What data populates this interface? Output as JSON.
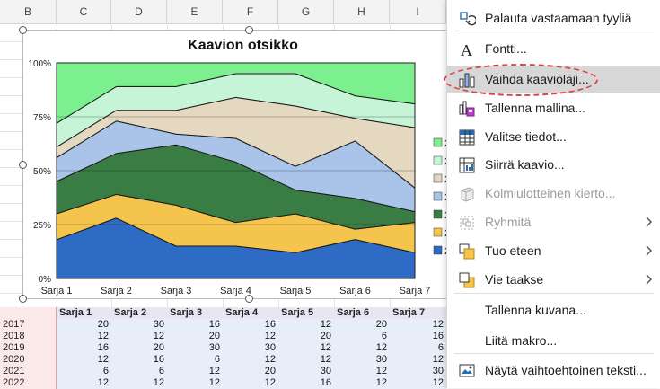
{
  "sheet": {
    "columns": [
      "B",
      "C",
      "D",
      "E",
      "F",
      "G",
      "H",
      "I"
    ],
    "table": {
      "headers": [
        "Sarja 1",
        "Sarja 2",
        "Sarja 3",
        "Sarja 4",
        "Sarja 5",
        "Sarja 6",
        "Sarja 7"
      ],
      "rows": [
        {
          "year": "2017",
          "values": [
            "20",
            "30",
            "16",
            "16",
            "12",
            "20",
            "12"
          ]
        },
        {
          "year": "2018",
          "values": [
            "12",
            "12",
            "20",
            "12",
            "20",
            "6",
            "16"
          ]
        },
        {
          "year": "2019",
          "values": [
            "16",
            "20",
            "30",
            "30",
            "12",
            "12",
            "6"
          ]
        },
        {
          "year": "2020",
          "values": [
            "12",
            "16",
            "6",
            "12",
            "12",
            "30",
            "12"
          ]
        },
        {
          "year": "2021",
          "values": [
            "6",
            "6",
            "12",
            "20",
            "30",
            "12",
            "30"
          ]
        },
        {
          "year": "2022",
          "values": [
            "12",
            "12",
            "12",
            "12",
            "16",
            "12",
            "12"
          ]
        }
      ]
    }
  },
  "chart_data": {
    "type": "area",
    "stacked": "percent",
    "title": "Kaavion otsikko",
    "categories": [
      "Sarja 1",
      "Sarja 2",
      "Sarja 3",
      "Sarja 4",
      "Sarja 5",
      "Sarja 6",
      "Sarja 7"
    ],
    "y_ticks": [
      "0%",
      "25%",
      "50%",
      "75%",
      "100%"
    ],
    "ylim": [
      0,
      100
    ],
    "grid": true,
    "legend_position": "right",
    "legend_labels": [
      "2",
      "2",
      "2",
      "2",
      "2",
      "2",
      "2"
    ],
    "series": [
      {
        "color": "#2e6bc4",
        "values": [
          18,
          28,
          15,
          15,
          12,
          19,
          12
        ]
      },
      {
        "color": "#f5c44c",
        "values": [
          12,
          11,
          19,
          11,
          18,
          5,
          14
        ]
      },
      {
        "color": "#3a7d44",
        "values": [
          15,
          19,
          28,
          28,
          11,
          15,
          5
        ]
      },
      {
        "color": "#a9c4e8",
        "values": [
          11,
          15,
          5,
          11,
          11,
          28,
          11
        ]
      },
      {
        "color": "#e4d8c0",
        "values": [
          5,
          5,
          11,
          19,
          28,
          11,
          28
        ]
      },
      {
        "color": "#c5f5d6",
        "values": [
          11,
          11,
          11,
          11,
          15,
          11,
          11
        ]
      },
      {
        "color": "#7cf08f",
        "values": [
          28,
          11,
          11,
          5,
          5,
          16,
          19
        ]
      }
    ]
  },
  "menu": {
    "items": [
      {
        "label": "Palauta vastaamaan tyyliä",
        "icon": "reset-style-icon",
        "disabled": false,
        "submenu": false
      },
      {
        "label": "Fontti...",
        "icon": "font-icon",
        "disabled": false,
        "submenu": false
      },
      {
        "label": "Vaihda kaaviolaji...",
        "icon": "change-chart-type-icon",
        "disabled": false,
        "submenu": false,
        "highlighted": true
      },
      {
        "label": "Tallenna mallina...",
        "icon": "save-template-icon",
        "disabled": false,
        "submenu": false
      },
      {
        "label": "Valitse tiedot...",
        "icon": "select-data-icon",
        "disabled": false,
        "submenu": false
      },
      {
        "label": "Siirrä kaavio...",
        "icon": "move-chart-icon",
        "disabled": false,
        "submenu": false
      },
      {
        "label": "Kolmiulotteinen kierto...",
        "icon": "3d-rotation-icon",
        "disabled": true,
        "submenu": false
      },
      {
        "label": "Ryhmitä",
        "icon": "group-icon",
        "disabled": true,
        "submenu": true
      },
      {
        "label": "Tuo eteen",
        "icon": "bring-forward-icon",
        "disabled": false,
        "submenu": true
      },
      {
        "label": "Vie taakse",
        "icon": "send-backward-icon",
        "disabled": false,
        "submenu": true
      },
      {
        "label": "Tallenna kuvana...",
        "icon": "",
        "disabled": false,
        "submenu": false
      },
      {
        "label": "Liitä makro...",
        "icon": "",
        "disabled": false,
        "submenu": false
      },
      {
        "label": "Näytä vaihtoehtoinen teksti...",
        "icon": "alt-text-icon",
        "disabled": false,
        "submenu": false
      }
    ]
  }
}
